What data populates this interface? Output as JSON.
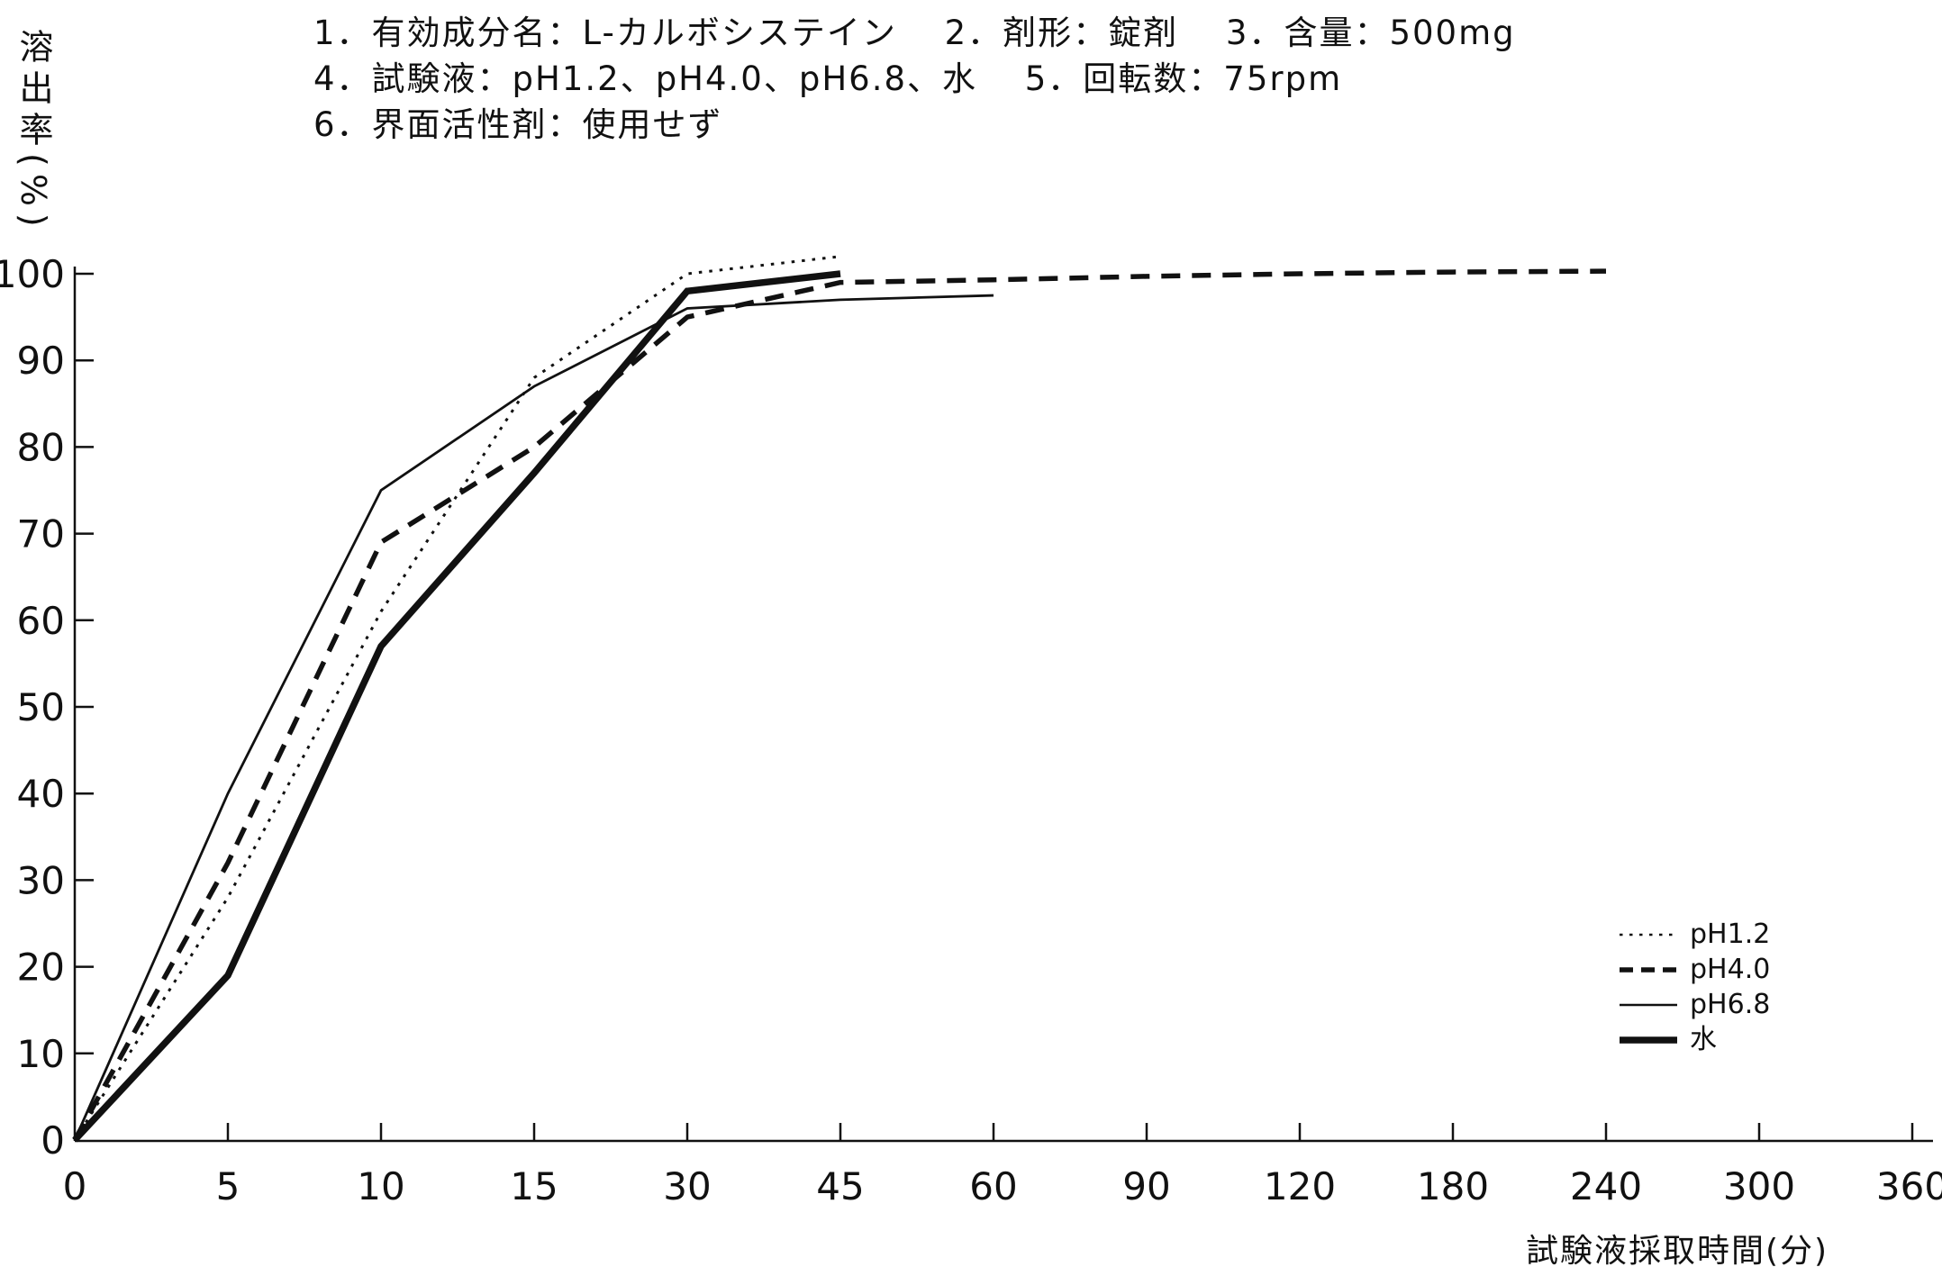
{
  "header": {
    "line1": "1．有効成分名：L-カルボシステイン　 2．剤形：錠剤　 3．含量：500mg",
    "line2": "4．試験液：pH1.2、pH4.0、pH6.8、水　 5．回転数：75rpm",
    "line3": "6．界面活性剤：使用せず"
  },
  "chart_data": {
    "type": "line",
    "title": "",
    "xlabel": "試験液採取時間(分)",
    "ylabel": "溶出率(%)",
    "x_ticks": [
      0,
      5,
      10,
      15,
      30,
      45,
      60,
      90,
      120,
      180,
      240,
      300,
      360
    ],
    "x_tick_spacing": "equal spacing per tick (non-linear time axis)",
    "y_ticks": [
      0,
      10,
      20,
      30,
      40,
      50,
      60,
      70,
      80,
      90,
      100
    ],
    "ylim": [
      0,
      105
    ],
    "grid": false,
    "legend_position": "lower-right",
    "line_color": "#111111",
    "series": [
      {
        "name": "pH1.2",
        "style": "fine-dotted",
        "points": [
          [
            0,
            0
          ],
          [
            5,
            28
          ],
          [
            10,
            61
          ],
          [
            15,
            88
          ],
          [
            30,
            100
          ],
          [
            45,
            102
          ]
        ]
      },
      {
        "name": "pH4.0",
        "style": "bold-dashed",
        "points": [
          [
            0,
            0
          ],
          [
            5,
            32
          ],
          [
            10,
            69
          ],
          [
            15,
            80
          ],
          [
            30,
            95
          ],
          [
            45,
            99
          ],
          [
            60,
            99.3
          ],
          [
            90,
            99.7
          ],
          [
            120,
            100
          ],
          [
            180,
            100.2
          ],
          [
            240,
            100.3
          ]
        ]
      },
      {
        "name": "pH6.8",
        "style": "thin-solid",
        "points": [
          [
            0,
            0
          ],
          [
            5,
            40
          ],
          [
            10,
            75
          ],
          [
            15,
            87
          ],
          [
            30,
            96
          ],
          [
            45,
            97
          ],
          [
            60,
            97.5
          ]
        ]
      },
      {
        "name": "水",
        "style": "thick-solid",
        "points": [
          [
            0,
            0
          ],
          [
            5,
            19
          ],
          [
            10,
            57
          ],
          [
            15,
            77
          ],
          [
            30,
            98
          ],
          [
            45,
            100
          ]
        ]
      }
    ]
  }
}
